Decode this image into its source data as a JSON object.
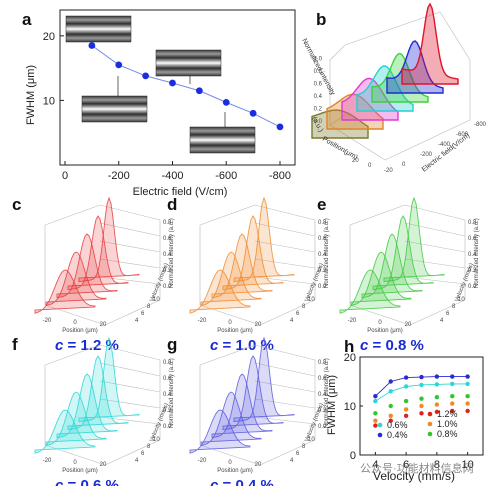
{
  "figure": {
    "panel_letters": [
      "a",
      "b",
      "c",
      "d",
      "e",
      "f",
      "g",
      "h"
    ],
    "watermark": "公众号·功能材料信息网"
  },
  "panel_a": {
    "xlabel": "Electric field (V/cm)",
    "ylabel": "FWHM (μm)",
    "xticks": [
      "0",
      "-200",
      "-400",
      "-600",
      "-800"
    ],
    "yticks": [
      "10",
      "20"
    ]
  },
  "panel_b": {
    "zlabel": "Normalized intensity",
    "zunit": "(a.u.)",
    "xlabel": "Position(μm)",
    "ylabel": "Electric field(V/cm)",
    "zticks": [
      "0.0",
      "0.2",
      "0.4",
      "0.6",
      "0.8",
      "1.0"
    ],
    "xticks": [
      "20",
      "0",
      "-20"
    ],
    "yticks": [
      "0",
      "-200",
      "-400",
      "-600",
      "-800"
    ],
    "series_colors": [
      "#7a7a2a",
      "#e2832a",
      "#e13ad0",
      "#25d0d0",
      "#3bd23b",
      "#1f2bd8",
      "#e0142a"
    ]
  },
  "small_panels": [
    {
      "id": "c",
      "label": "c = 1.2 %",
      "c_symbol": "c",
      "c_value": "= 1.2 %",
      "color": "#e63a3a",
      "xlabel": "Position (μm)",
      "ylabel": "Velocity (mm/s)",
      "zlabel": "Normalized intensity (a.u.)",
      "xticks": [
        "-20",
        "0",
        "20"
      ],
      "yticks": [
        "4",
        "6",
        "8",
        "10"
      ],
      "zticks": [
        "0.0",
        "0.2",
        "0.4",
        "0.6",
        "0.8"
      ]
    },
    {
      "id": "d",
      "label": "c = 1.0 %",
      "c_symbol": "c",
      "c_value": "= 1.0 %",
      "color": "#f08a2a",
      "xlabel": "Position (μm)",
      "ylabel": "Velocity (mm/s)",
      "zlabel": "Normalized intensity (a.u.)",
      "xticks": [
        "-20",
        "0",
        "20"
      ],
      "yticks": [
        "4",
        "6",
        "8",
        "10"
      ],
      "zticks": [
        "0.0",
        "0.2",
        "0.4",
        "0.6",
        "0.8"
      ]
    },
    {
      "id": "e",
      "label": "c = 0.8 %",
      "c_symbol": "c",
      "c_value": "= 0.8 %",
      "color": "#3cc83c",
      "xlabel": "Position (μm)",
      "ylabel": "Velocity (mm/s)",
      "zlabel": "Normalized intensity (a.u.)",
      "xticks": [
        "-20",
        "0",
        "20"
      ],
      "yticks": [
        "4",
        "6",
        "8",
        "10"
      ],
      "zticks": [
        "0.0",
        "0.2",
        "0.4",
        "0.6",
        "0.8"
      ]
    },
    {
      "id": "f",
      "label": "c = 0.6 %",
      "c_symbol": "c",
      "c_value": "= 0.6 %",
      "color": "#2ad6d6",
      "xlabel": "Position (μm)",
      "ylabel": "Velocity (mm/s)",
      "zlabel": "Normalized intensity (a.u.)",
      "xticks": [
        "-20",
        "0",
        "20"
      ],
      "yticks": [
        "4",
        "6",
        "8",
        "10"
      ],
      "zticks": [
        "0.0",
        "0.2",
        "0.4",
        "0.6",
        "0.8"
      ]
    },
    {
      "id": "g",
      "label": "c = 0.4 %",
      "c_symbol": "c",
      "c_value": "= 0.4 %",
      "color": "#5a5ae0",
      "xlabel": "Position (μm)",
      "ylabel": "Velocity (mm/s)",
      "zlabel": "Normalized intensity (a.u.)",
      "xticks": [
        "-20",
        "0",
        "20"
      ],
      "yticks": [
        "4",
        "6",
        "8",
        "10"
      ],
      "zticks": [
        "0.0",
        "0.2",
        "0.4",
        "0.6",
        "0.8"
      ]
    }
  ],
  "panel_h": {
    "xlabel": "Velocity (mm/s)",
    "ylabel": "FWHM (μm)",
    "xticks": [
      "4",
      "6",
      "8",
      "10"
    ],
    "yticks": [
      "0",
      "10",
      "20"
    ],
    "legend": [
      {
        "name": "1.2%",
        "color": "#e0201e"
      },
      {
        "name": "1.0%",
        "color": "#f08a20"
      },
      {
        "name": "0.8%",
        "color": "#2ec82e"
      },
      {
        "name": "0.6%",
        "color": "#2ad6d6"
      },
      {
        "name": "0.4%",
        "color": "#2a2ad0"
      }
    ]
  },
  "chart_data": [
    {
      "id": "a",
      "type": "line",
      "xlabel": "Electric field (V/cm)",
      "ylabel": "FWHM (μm)",
      "xlim": [
        0,
        -800
      ],
      "ylim": [
        0,
        24
      ],
      "series": [
        {
          "x": [
            -100,
            -200,
            -300,
            -400,
            -500,
            -600,
            -700,
            -800
          ],
          "y": [
            18.5,
            15.5,
            13.8,
            12.7,
            11.5,
            9.7,
            8.0,
            5.9
          ]
        }
      ],
      "grid": false
    },
    {
      "id": "h",
      "type": "line",
      "xlabel": "Velocity (mm/s)",
      "ylabel": "FWHM (μm)",
      "xlim": [
        3,
        11
      ],
      "ylim": [
        0,
        20
      ],
      "legend_position": "bottom-right",
      "series": [
        {
          "name": "1.2%",
          "x": [
            4,
            5,
            6,
            7,
            8,
            9,
            10
          ],
          "y": [
            6,
            7,
            8,
            8.5,
            8.8,
            9,
            9
          ]
        },
        {
          "name": "1.0%",
          "x": [
            4,
            5,
            6,
            7,
            8,
            9,
            10
          ],
          "y": [
            7,
            8,
            9.3,
            10,
            10.3,
            10.5,
            10.5
          ]
        },
        {
          "name": "0.8%",
          "x": [
            4,
            5,
            6,
            7,
            8,
            9,
            10
          ],
          "y": [
            8.5,
            10,
            11,
            11.5,
            11.8,
            12,
            12
          ]
        },
        {
          "name": "0.6%",
          "x": [
            4,
            5,
            6,
            7,
            8,
            9,
            10
          ],
          "y": [
            11,
            13,
            14,
            14.3,
            14.4,
            14.5,
            14.5
          ]
        },
        {
          "name": "0.4%",
          "x": [
            4,
            5,
            6,
            7,
            8,
            9,
            10
          ],
          "y": [
            12,
            15,
            15.8,
            15.9,
            16,
            16,
            16
          ]
        }
      ]
    }
  ]
}
